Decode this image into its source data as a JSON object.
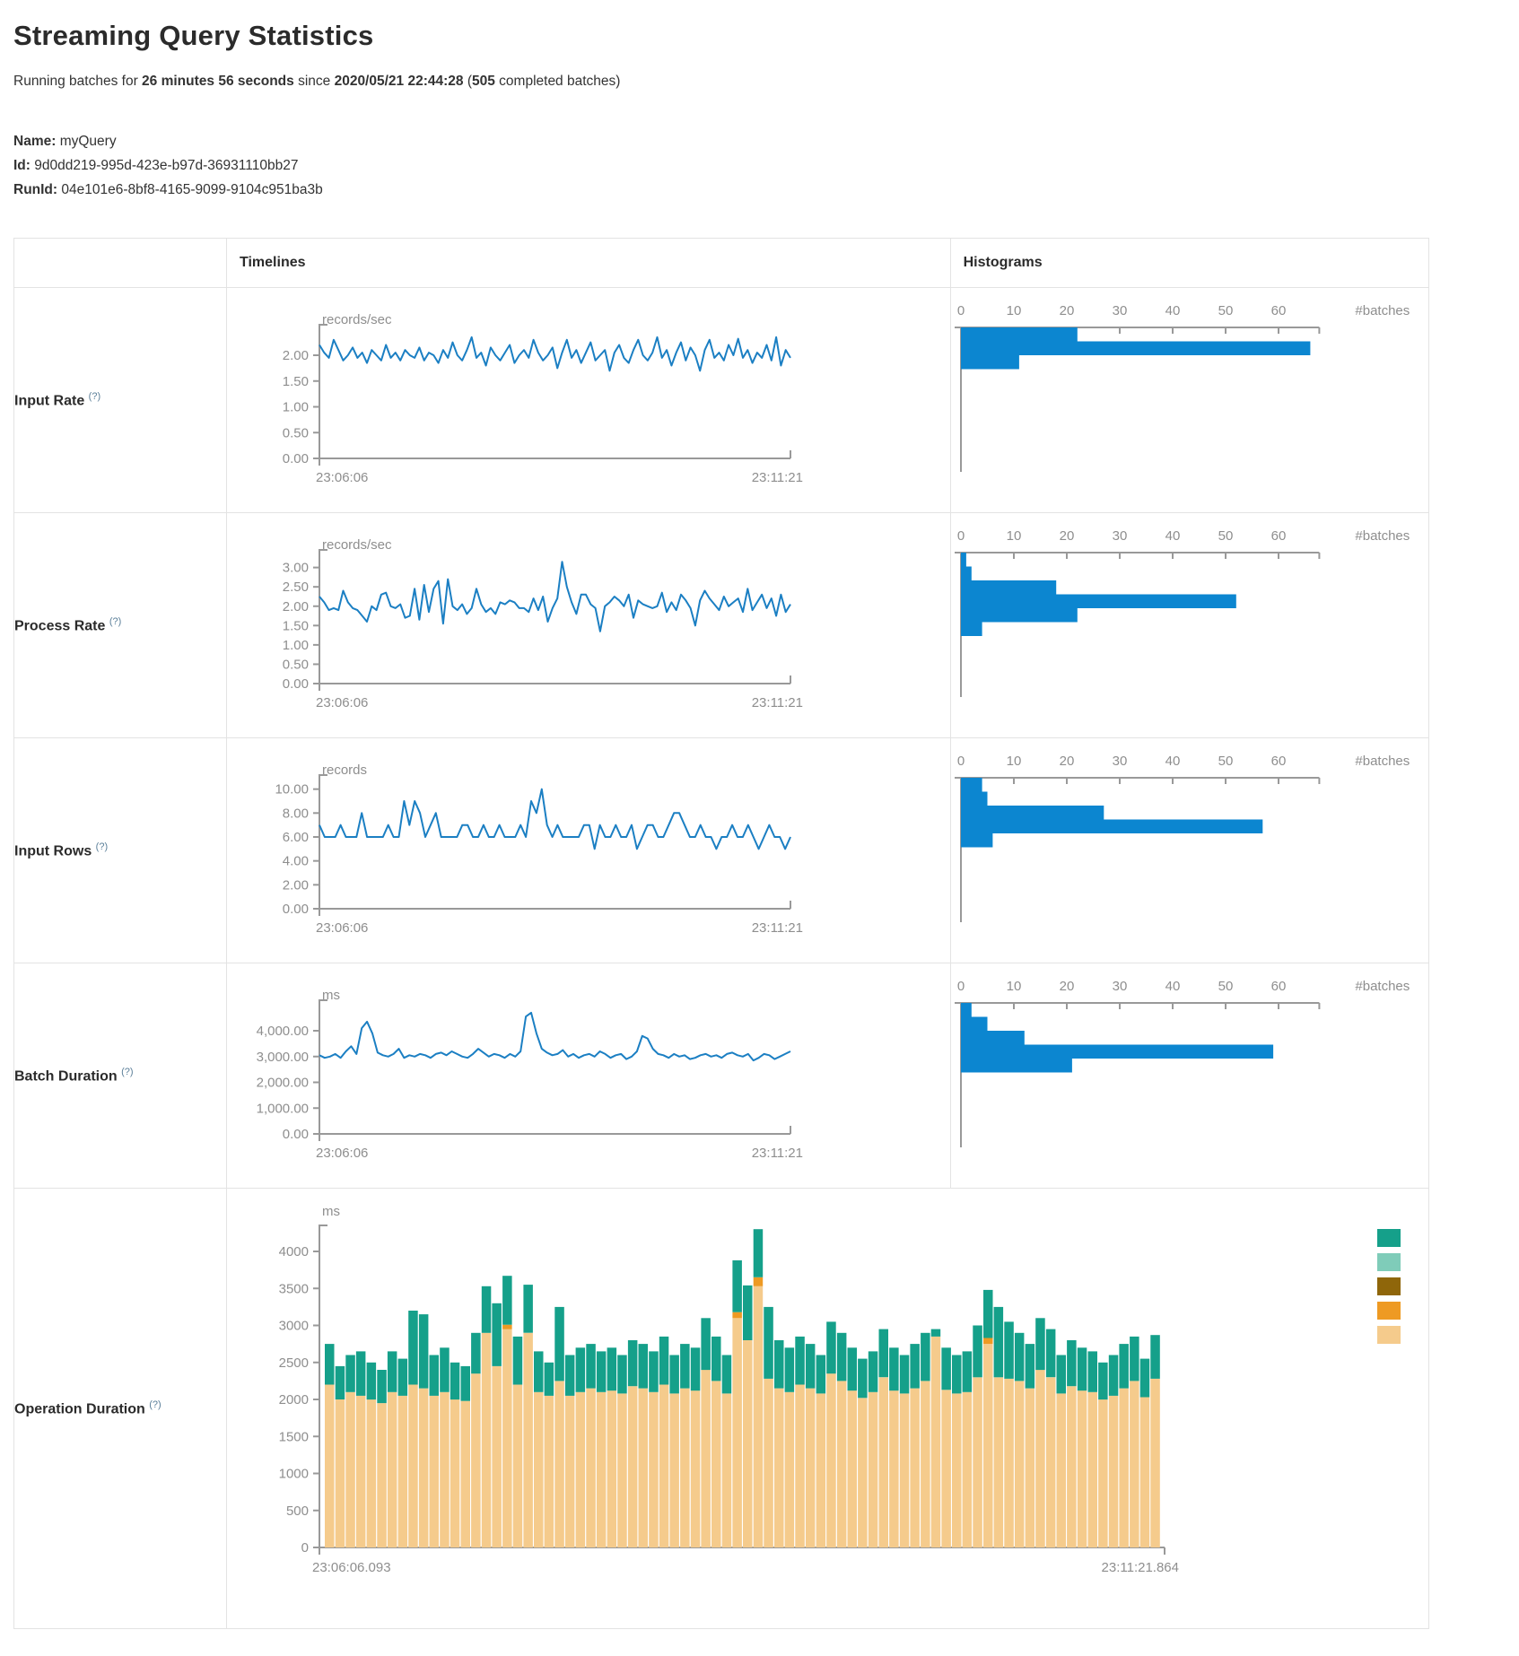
{
  "page": {
    "title": "Streaming Query Statistics",
    "running_prefix": "Running batches for ",
    "duration": "26 minutes 56 seconds",
    "since_text": " since ",
    "start_time": "2020/05/21 22:44:28",
    "batches_open": " (",
    "batches_count": "505",
    "batches_suffix": " completed batches)",
    "name_label": "Name:",
    "name_value": "myQuery",
    "id_label": "Id:",
    "id_value": "9d0dd219-995d-423e-b97d-36931110bb27",
    "runid_label": "RunId:",
    "runid_value": "04e101e6-8bf8-4165-9099-9104c951ba3b"
  },
  "table": {
    "col_timelines": "Timelines",
    "col_histograms": "Histograms",
    "rows": [
      {
        "label": "Input Rate",
        "help": "(?)"
      },
      {
        "label": "Process Rate",
        "help": "(?)"
      },
      {
        "label": "Input Rows",
        "help": "(?)"
      },
      {
        "label": "Batch Duration",
        "help": "(?)"
      },
      {
        "label": "Operation Duration",
        "help": "(?)"
      }
    ]
  },
  "colors": {
    "line": "#1b7fc3",
    "hist_bar": "#0c86d0",
    "axis": "#999999",
    "label": "#8e8e8e",
    "op_teal": "#15a08a",
    "op_seafoam": "#7fccb9",
    "op_olive": "#8f660a",
    "op_orange": "#ee9a23",
    "op_tan": "#f5cb8c"
  },
  "chart_data": [
    {
      "name": "input_rate",
      "timeline": {
        "type": "line",
        "unit": "records/sec",
        "ylim": [
          0,
          2.4
        ],
        "yticks": [
          2.0,
          1.5,
          1.0,
          0.5,
          0.0
        ],
        "ytick_labels": [
          "2.00",
          "1.50",
          "1.00",
          "0.50",
          "0.00"
        ],
        "x_start": "23:06:06",
        "x_end": "23:11:21",
        "values": [
          2.2,
          2.05,
          1.95,
          2.3,
          2.1,
          1.9,
          2.0,
          2.15,
          1.95,
          2.05,
          1.85,
          2.1,
          2.0,
          1.9,
          2.2,
          1.95,
          2.05,
          1.9,
          2.1,
          2.0,
          1.95,
          2.15,
          1.9,
          2.05,
          2.0,
          1.85,
          2.1,
          1.95,
          2.25,
          2.0,
          1.9,
          2.1,
          2.35,
          1.95,
          2.05,
          1.8,
          2.15,
          2.0,
          1.9,
          2.05,
          2.2,
          1.85,
          2.0,
          2.1,
          1.95,
          2.3,
          2.05,
          1.9,
          2.0,
          2.15,
          1.75,
          2.05,
          2.3,
          1.95,
          2.1,
          1.85,
          2.05,
          2.25,
          1.9,
          2.0,
          2.1,
          1.7,
          2.05,
          2.2,
          1.95,
          1.85,
          2.1,
          2.3,
          2.0,
          1.9,
          2.05,
          2.35,
          1.95,
          2.1,
          1.8,
          2.05,
          2.25,
          1.9,
          2.15,
          2.0,
          1.7,
          2.1,
          2.3,
          1.95,
          2.05,
          1.9,
          2.2,
          2.0,
          2.32,
          1.95,
          2.1,
          1.85,
          2.05,
          1.95,
          2.2,
          1.9,
          2.35,
          1.8,
          2.1,
          1.95
        ]
      },
      "histogram": {
        "type": "bar",
        "orientation": "horizontal",
        "xlabel": "#batches",
        "xticks": [
          0,
          10,
          20,
          30,
          40,
          50,
          60
        ],
        "xmax": 66,
        "values": [
          22,
          66,
          11
        ]
      }
    },
    {
      "name": "process_rate",
      "timeline": {
        "type": "line",
        "unit": "records/sec",
        "ylim": [
          0,
          3.2
        ],
        "yticks": [
          3.0,
          2.5,
          2.0,
          1.5,
          1.0,
          0.5,
          0.0
        ],
        "ytick_labels": [
          "3.00",
          "2.50",
          "2.00",
          "1.50",
          "1.00",
          "0.50",
          "0.00"
        ],
        "x_start": "23:06:06",
        "x_end": "23:11:21",
        "values": [
          2.25,
          2.1,
          1.9,
          1.95,
          1.9,
          2.4,
          2.1,
          1.95,
          1.9,
          1.75,
          1.6,
          2.0,
          1.9,
          2.3,
          2.35,
          2.0,
          1.95,
          2.05,
          1.7,
          1.75,
          2.45,
          1.65,
          2.55,
          1.85,
          2.45,
          2.65,
          1.55,
          2.7,
          2.0,
          1.9,
          2.05,
          1.8,
          1.95,
          2.45,
          2.05,
          1.85,
          1.95,
          1.8,
          2.1,
          2.05,
          2.15,
          2.1,
          1.95,
          1.95,
          1.85,
          2.2,
          1.9,
          2.25,
          1.6,
          1.95,
          2.2,
          3.15,
          2.5,
          2.1,
          1.8,
          2.3,
          2.3,
          2.05,
          1.95,
          1.35,
          2.0,
          2.1,
          2.25,
          2.15,
          2.0,
          2.3,
          1.7,
          2.15,
          2.05,
          2.0,
          1.95,
          2.0,
          2.35,
          1.85,
          2.1,
          1.9,
          2.3,
          2.15,
          1.95,
          1.5,
          2.15,
          2.4,
          2.2,
          2.05,
          1.9,
          2.25,
          2.0,
          2.1,
          2.2,
          1.85,
          2.45,
          1.9,
          2.1,
          2.3,
          1.95,
          2.2,
          1.75,
          2.3,
          1.85,
          2.05
        ]
      },
      "histogram": {
        "type": "bar",
        "orientation": "horizontal",
        "xlabel": "#batches",
        "xticks": [
          0,
          10,
          20,
          30,
          40,
          50,
          60
        ],
        "xmax": 66,
        "values": [
          1,
          2,
          18,
          52,
          22,
          4
        ]
      }
    },
    {
      "name": "input_rows",
      "timeline": {
        "type": "line",
        "unit": "records",
        "ylim": [
          0,
          10.35
        ],
        "yticks": [
          10,
          8,
          6,
          4,
          2,
          0
        ],
        "ytick_labels": [
          "10.00",
          "8.00",
          "6.00",
          "4.00",
          "2.00",
          "0.00"
        ],
        "x_start": "23:06:06",
        "x_end": "23:11:21",
        "values": [
          7,
          6,
          6,
          6,
          7,
          6,
          6,
          6,
          8,
          6,
          6,
          6,
          6,
          7,
          6,
          6,
          9,
          7,
          9,
          8,
          6,
          7,
          8,
          6,
          6,
          6,
          6,
          7,
          7,
          6,
          6,
          7,
          6,
          6,
          7,
          6,
          6,
          6,
          7,
          6,
          9,
          8,
          10,
          7,
          6,
          7,
          6,
          6,
          6,
          6,
          7,
          7,
          5,
          7,
          6,
          6,
          7,
          6,
          6,
          7,
          5,
          6,
          7,
          7,
          6,
          6,
          7,
          8,
          8,
          7,
          6,
          6,
          7,
          6,
          6,
          5,
          6,
          6,
          7,
          6,
          6,
          7,
          6,
          5,
          6,
          7,
          6,
          6,
          5,
          6
        ]
      },
      "histogram": {
        "type": "bar",
        "orientation": "horizontal",
        "xlabel": "#batches",
        "xticks": [
          0,
          10,
          20,
          30,
          40,
          50,
          60
        ],
        "xmax": 66,
        "values": [
          4,
          5,
          27,
          57,
          6
        ]
      }
    },
    {
      "name": "batch_duration",
      "timeline": {
        "type": "line",
        "unit": "ms",
        "ylim": [
          0,
          4800
        ],
        "yticks": [
          4000,
          3000,
          2000,
          1000,
          0
        ],
        "ytick_labels": [
          "4,000.00",
          "3,000.00",
          "2,000.00",
          "1,000.00",
          "0.00"
        ],
        "x_start": "23:06:06",
        "x_end": "23:11:21",
        "values": [
          3050,
          2950,
          3000,
          3100,
          2950,
          3200,
          3400,
          3100,
          4100,
          4350,
          3900,
          3150,
          3050,
          3000,
          3100,
          3300,
          2950,
          3050,
          3000,
          3100,
          3050,
          2950,
          3100,
          3150,
          3050,
          3200,
          3100,
          3000,
          2950,
          3100,
          3300,
          3150,
          3000,
          3100,
          3050,
          2950,
          3100,
          3000,
          3200,
          4550,
          4700,
          3900,
          3300,
          3150,
          3050,
          3100,
          3250,
          3000,
          3100,
          2950,
          3050,
          3100,
          3000,
          3200,
          3100,
          2950,
          3050,
          3100,
          2900,
          3000,
          3200,
          3800,
          3700,
          3300,
          3100,
          3050,
          2950,
          3100,
          3000,
          3050,
          2900,
          2950,
          3050,
          3100,
          3000,
          3050,
          2950,
          3100,
          3150,
          3050,
          3000,
          3100,
          2850,
          2950,
          3100,
          3050,
          2900,
          3000,
          3100,
          3200
        ]
      },
      "histogram": {
        "type": "bar",
        "orientation": "horizontal",
        "xlabel": "#batches",
        "xticks": [
          0,
          10,
          20,
          30,
          40,
          50,
          60
        ],
        "xmax": 66,
        "values": [
          2,
          5,
          12,
          59,
          21
        ]
      }
    },
    {
      "name": "operation_duration",
      "timeline": {
        "type": "stacked_bar",
        "unit": "ms",
        "ylim": [
          0,
          4800
        ],
        "yticks": [
          4000,
          3500,
          3000,
          2500,
          2000,
          1500,
          1000,
          500,
          0
        ],
        "ytick_labels": [
          "4000",
          "3500",
          "3000",
          "2500",
          "2000",
          "1500",
          "1000",
          "500",
          "0"
        ],
        "x_start": "23:06:06.093",
        "x_end": "23:11:21.864",
        "legend_colors": [
          "#15a08a",
          "#7fccb9",
          "#8f660a",
          "#ee9a23",
          "#f5cb8c"
        ],
        "series": {
          "bottom_color": "#f5cb8c",
          "bottom": [
            2200,
            2000,
            2100,
            2050,
            2000,
            1950,
            2100,
            2050,
            2200,
            2150,
            2050,
            2100,
            2000,
            1980,
            2350,
            2900,
            2450,
            2950,
            2200,
            2900,
            2100,
            2050,
            2250,
            2050,
            2100,
            2150,
            2100,
            2120,
            2080,
            2180,
            2150,
            2100,
            2200,
            2080,
            2150,
            2120,
            2400,
            2250,
            2080,
            3100,
            2800,
            3530,
            2280,
            2150,
            2100,
            2200,
            2150,
            2080,
            2350,
            2250,
            2120,
            2020,
            2100,
            2300,
            2120,
            2080,
            2150,
            2250,
            2850,
            2130,
            2080,
            2100,
            2300,
            2750,
            2300,
            2280,
            2250,
            2150,
            2400,
            2300,
            2080,
            2180,
            2120,
            2100,
            2000,
            2050,
            2150,
            2250,
            2030,
            2280
          ],
          "middle_color": "#ee9a23",
          "middle": [
            0,
            0,
            0,
            0,
            0,
            0,
            0,
            0,
            0,
            0,
            0,
            0,
            0,
            0,
            0,
            0,
            0,
            60,
            0,
            0,
            0,
            0,
            0,
            0,
            0,
            0,
            0,
            0,
            0,
            0,
            0,
            0,
            0,
            0,
            0,
            0,
            0,
            0,
            0,
            80,
            0,
            120,
            0,
            0,
            0,
            0,
            0,
            0,
            0,
            0,
            0,
            0,
            0,
            0,
            0,
            0,
            0,
            0,
            0,
            0,
            0,
            0,
            0,
            80,
            0,
            0,
            0,
            0,
            0,
            0,
            0,
            0,
            0,
            0,
            0,
            0,
            0,
            0,
            0,
            0
          ],
          "top_color": "#15a08a",
          "top": [
            550,
            450,
            500,
            600,
            500,
            450,
            550,
            500,
            1000,
            1000,
            550,
            600,
            500,
            470,
            550,
            630,
            850,
            660,
            650,
            650,
            550,
            450,
            1000,
            550,
            600,
            600,
            550,
            580,
            520,
            620,
            600,
            550,
            650,
            520,
            600,
            580,
            700,
            600,
            520,
            700,
            740,
            650,
            970,
            650,
            600,
            650,
            600,
            520,
            700,
            650,
            580,
            530,
            550,
            650,
            580,
            520,
            600,
            650,
            100,
            570,
            520,
            550,
            700,
            650,
            950,
            770,
            650,
            600,
            700,
            650,
            520,
            620,
            580,
            550,
            500,
            550,
            600,
            600,
            520,
            590
          ]
        }
      }
    }
  ]
}
